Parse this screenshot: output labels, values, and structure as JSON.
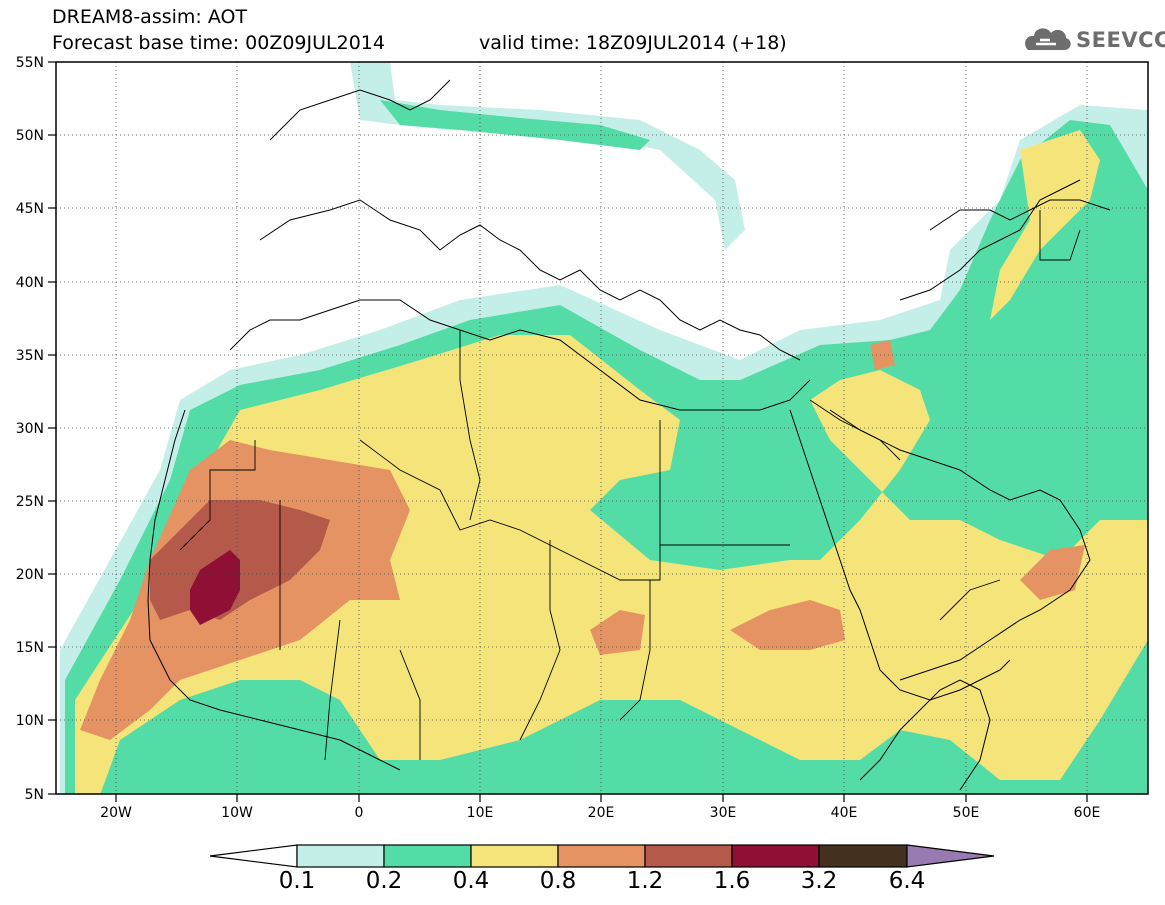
{
  "header": {
    "line1": "DREAM8-assim: AOT",
    "line2_base": "Forecast base time: 00Z09JUL2014",
    "line2_valid": "valid time: 18Z09JUL2014 (+18)",
    "logo_text": "SEEVCCC"
  },
  "map": {
    "lon_range": [
      -25,
      65
    ],
    "lat_range": [
      5,
      55
    ],
    "lat_labels": [
      "55N",
      "50N",
      "45N",
      "40N",
      "35N",
      "30N",
      "25N",
      "20N",
      "15N",
      "10N",
      "5N"
    ],
    "lon_labels": [
      "20W",
      "10W",
      "0",
      "10E",
      "20E",
      "30E",
      "40E",
      "50E",
      "60E"
    ],
    "gridlines": "dotted",
    "variable": "AOT"
  },
  "colorbar": {
    "labels": [
      "0.1",
      "0.2",
      "0.4",
      "0.8",
      "1.2",
      "1.6",
      "3.2",
      "6.4"
    ],
    "colors": [
      "#ffffff",
      "#c4efe8",
      "#53dca6",
      "#f5e47a",
      "#e69363",
      "#b55a4b",
      "#8f0f35",
      "#44301e",
      "#967ab0"
    ]
  }
}
